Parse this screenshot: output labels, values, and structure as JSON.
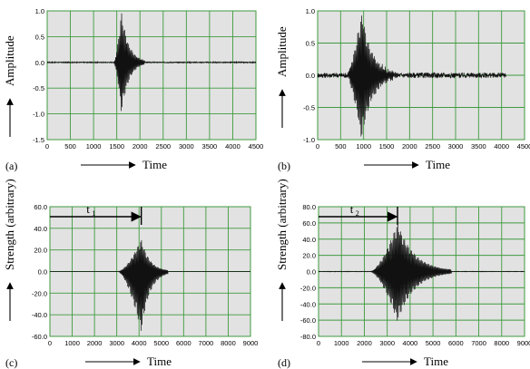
{
  "chart_data": [
    {
      "type": "line",
      "panel_label": "(a)",
      "xlabel": "Time",
      "ylabel": "Amplitude",
      "xlim": [
        0,
        4500
      ],
      "ylim": [
        -1.5,
        1.0
      ],
      "x_ticks": [
        "0",
        "500",
        "1000",
        "1500",
        "2000",
        "2500",
        "3000",
        "3500",
        "4000",
        "4500"
      ],
      "y_ticks": [
        "1.0",
        "0.5",
        "0.0",
        "-0.5",
        "-1.0",
        "-1.5"
      ],
      "grid": true,
      "series": [
        {
          "values": {
            "center": 1600,
            "peak": 0.98,
            "trough": -1.0,
            "burst_start": 1430,
            "burst_end": 2100,
            "noise": 0.01
          }
        }
      ]
    },
    {
      "type": "line",
      "panel_label": "(b)",
      "xlabel": "Time",
      "ylabel": "Amplitude",
      "xlim": [
        0,
        4500
      ],
      "ylim": [
        -1.0,
        1.0
      ],
      "x_ticks": [
        "0",
        "500",
        "1000",
        "1500",
        "2000",
        "2500",
        "3000",
        "3500",
        "4000",
        "4500"
      ],
      "y_ticks": [
        "1.0",
        "0.5",
        "0.0",
        "-0.5",
        "-1.0"
      ],
      "grid": true,
      "series": [
        {
          "values": {
            "center": 950,
            "peak": 0.98,
            "trough": -1.0,
            "burst_start": 620,
            "burst_end": 1700,
            "noise": 0.04,
            "trace_end": 4100
          }
        }
      ]
    },
    {
      "type": "line",
      "panel_label": "(c)",
      "xlabel": "Time",
      "ylabel": "Strength (arbitrary)",
      "xlim": [
        0,
        9000
      ],
      "ylim": [
        -60,
        60
      ],
      "x_ticks": [
        "0",
        "1000",
        "2000",
        "3000",
        "4000",
        "5000",
        "6000",
        "7000",
        "8000",
        "9000"
      ],
      "y_ticks": [
        "60.0",
        "40.0",
        "20.0",
        "0.0",
        "-20.0",
        "-40.0",
        "-60.0"
      ],
      "grid": true,
      "annotation": {
        "label": "t",
        "subscript": "1",
        "x": 4100
      },
      "series": [
        {
          "values": {
            "center": 4100,
            "peak": 30,
            "trough": -56,
            "burst_start": 3050,
            "burst_end": 5300,
            "noise": 0
          }
        }
      ]
    },
    {
      "type": "line",
      "panel_label": "(d)",
      "xlabel": "Time",
      "ylabel": "Strength (arbitrary)",
      "xlim": [
        0,
        9000
      ],
      "ylim": [
        -80,
        80
      ],
      "x_ticks": [
        "0",
        "1000",
        "2000",
        "3000",
        "4000",
        "5000",
        "6000",
        "7000",
        "8000",
        "9000"
      ],
      "y_ticks": [
        "80.0",
        "60.0",
        "40.0",
        "20.0",
        "0.0",
        "-20.0",
        "-40.0",
        "-60.0",
        "-80.0"
      ],
      "grid": true,
      "annotation": {
        "label": "t",
        "subscript": "2",
        "x": 3450
      },
      "series": [
        {
          "values": {
            "center": 3450,
            "peak": 60,
            "trough": -62,
            "burst_start": 2250,
            "burst_end": 5800,
            "noise": 0.3
          }
        }
      ]
    }
  ]
}
